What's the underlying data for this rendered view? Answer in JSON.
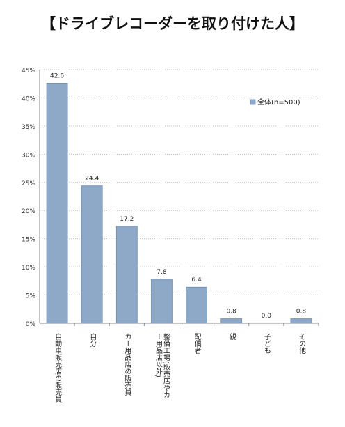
{
  "title": "【ドライブレコーダーを取り付けた人】",
  "chart_data": {
    "type": "bar",
    "categories": [
      "自動車販売店の販売員",
      "自分",
      "カー用品店の販売員",
      "整備工場(販売店やカー用品店以外)",
      "配偶者",
      "親",
      "子ども",
      "その他"
    ],
    "series": [
      {
        "name": "全体(n=500)",
        "values": [
          42.6,
          24.4,
          17.2,
          7.8,
          6.4,
          0.8,
          0.0,
          0.8
        ]
      }
    ],
    "data_labels": [
      "42.6",
      "24.4",
      "17.2",
      "7.8",
      "6.4",
      "0.8",
      "0.0",
      "0.8"
    ],
    "y_ticks": [
      "0%",
      "5%",
      "10%",
      "15%",
      "20%",
      "25%",
      "30%",
      "35%",
      "40%",
      "45%"
    ],
    "ylim": [
      0,
      45
    ],
    "grid": true,
    "legend_position": "top-right",
    "colors": {
      "bar": "#8ea9c8",
      "bar_stroke": "#6f8db3",
      "grid": "#bdbdbd",
      "axis": "#888888"
    }
  }
}
